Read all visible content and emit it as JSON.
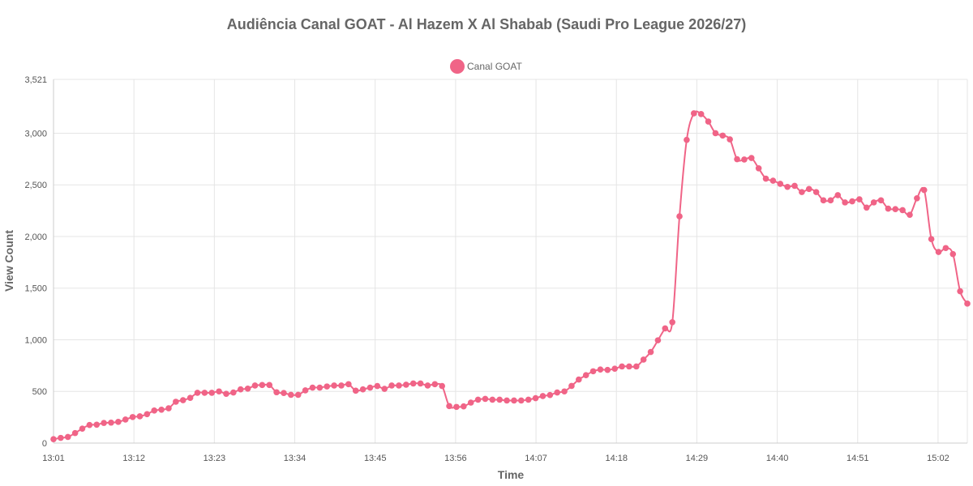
{
  "chart_data": {
    "type": "line",
    "title": "Audiência Canal GOAT - Al Hazem X Al Shabab (Saudi Pro League 2026/27)",
    "xlabel": "Time",
    "ylabel": "View Count",
    "ylim": [
      0,
      3521
    ],
    "y_ticks": [
      "0",
      "500",
      "1,000",
      "1,500",
      "2,000",
      "2,500",
      "3,000",
      "3,521"
    ],
    "x_tick_labels": [
      "13:01",
      "13:12",
      "13:23",
      "13:34",
      "13:45",
      "13:56",
      "14:07",
      "14:18",
      "14:29",
      "14:40",
      "14:51",
      "15:02"
    ],
    "x_start": "13:01",
    "x_end": "15:06",
    "grid": true,
    "legend_position": "top-center",
    "color": "#f06487",
    "series": [
      {
        "name": "Canal GOAT",
        "values": [
          38,
          50,
          59,
          97,
          140,
          175,
          178,
          195,
          198,
          205,
          228,
          252,
          259,
          280,
          315,
          323,
          337,
          400,
          415,
          438,
          487,
          487,
          487,
          500,
          477,
          490,
          520,
          527,
          557,
          562,
          562,
          492,
          485,
          467,
          467,
          510,
          537,
          537,
          548,
          557,
          557,
          570,
          507,
          520,
          537,
          552,
          525,
          557,
          557,
          565,
          577,
          577,
          557,
          570,
          552,
          358,
          350,
          355,
          392,
          420,
          428,
          420,
          420,
          412,
          412,
          412,
          420,
          435,
          455,
          465,
          490,
          500,
          553,
          615,
          657,
          695,
          712,
          708,
          720,
          742,
          742,
          742,
          808,
          882,
          995,
          1110,
          1170,
          2195,
          2935,
          3192,
          3185,
          3113,
          3000,
          2977,
          2940,
          2748,
          2745,
          2760,
          2660,
          2560,
          2540,
          2510,
          2480,
          2490,
          2430,
          2460,
          2430,
          2350,
          2350,
          2400,
          2330,
          2340,
          2360,
          2280,
          2330,
          2350,
          2270,
          2265,
          2255,
          2210,
          2370,
          2450,
          1975,
          1850,
          1888,
          1830,
          1470,
          1350
        ]
      }
    ]
  }
}
